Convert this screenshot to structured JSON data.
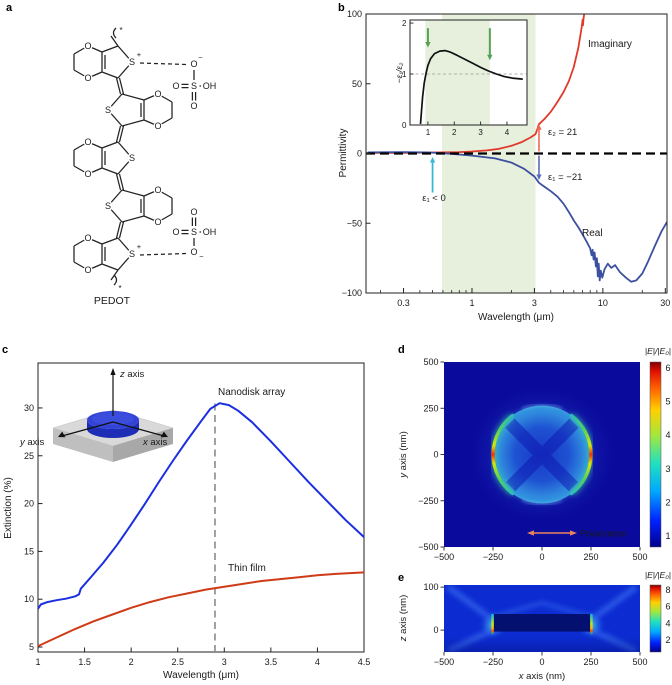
{
  "figure": {
    "background": "#ffffff"
  },
  "panels": {
    "a": {
      "label": "a",
      "molecule_name": "PEDOT",
      "atom_o": "O",
      "atom_s": "S",
      "atom_oh": "OH",
      "charge_plus": "+",
      "charge_minus": "−",
      "asterisk": "*"
    },
    "b": {
      "label": "b",
      "imaginary_label": "Imaginary",
      "real_label": "Real",
      "ann_eps2": "ε₂ = 21",
      "ann_eps1": "ε₁ = −21",
      "ann_eps1_lt0": "ε₁ < 0"
    },
    "c": {
      "label": "c",
      "series_nanodisk": "Nanodisk array",
      "series_thinfilm": "Thin film",
      "axis_z_letter": "z",
      "axis_x_letter": "x",
      "axis_y_letter": "y",
      "axis_word": " axis"
    },
    "d": {
      "label": "d",
      "colorbar_label": "|E|/|E₀|",
      "polarization_label": "Polarization",
      "ylabel_letter": "y",
      "ylabel_rest": " axis (nm)"
    },
    "e": {
      "label": "e",
      "colorbar_label": "|E|/|E₀|",
      "ylabel_letter": "z",
      "ylabel_rest": " axis (nm)",
      "xlabel_letter": "x",
      "xlabel_rest": " axis (nm)"
    }
  },
  "chart_data": [
    {
      "id": "permittivity_spectrum",
      "panel": "b",
      "type": "line",
      "xlabel": "Wavelength (μm)",
      "ylabel": "Permittivity",
      "xscale": "log",
      "xlim": [
        0.155,
        30.9
      ],
      "ylim": [
        -100,
        100
      ],
      "xticks": [
        0.3,
        1,
        3,
        10,
        30
      ],
      "xticks_minor": [
        0.2,
        0.4,
        0.5,
        0.6,
        0.7,
        0.8,
        0.9,
        2,
        4,
        5,
        6,
        7,
        8,
        9,
        20
      ],
      "yticks": [
        -100,
        -50,
        0,
        50,
        100
      ],
      "shaded_band_x": [
        0.59,
        3.06
      ],
      "band_color": "#e6f0dd",
      "zero_line": 0,
      "grid": false,
      "legend_position": "inline-labels",
      "series": [
        {
          "name": "Imaginary",
          "color": "#e0392b",
          "points": [
            [
              0.16,
              0.4
            ],
            [
              0.3,
              0.5
            ],
            [
              0.5,
              0.7
            ],
            [
              0.8,
              1.0
            ],
            [
              1,
              1.4
            ],
            [
              1.3,
              2.2
            ],
            [
              1.6,
              3.3
            ],
            [
              2,
              5.5
            ],
            [
              2.4,
              8.2
            ],
            [
              2.8,
              11.5
            ],
            [
              3.06,
              14
            ],
            [
              3.25,
              21
            ],
            [
              3.6,
              25
            ],
            [
              4,
              30
            ],
            [
              4.5,
              37
            ],
            [
              5,
              44
            ],
            [
              5.5,
              52
            ],
            [
              6,
              62
            ],
            [
              6.5,
              76
            ],
            [
              6.9,
              91
            ],
            [
              7.0,
              96
            ],
            [
              7.05,
              92
            ],
            [
              7.1,
              96
            ],
            [
              7.2,
              100
            ]
          ]
        },
        {
          "name": "Real",
          "color": "#3c50a0",
          "points": [
            [
              0.16,
              0.8
            ],
            [
              0.3,
              0.9
            ],
            [
              0.45,
              0.8
            ],
            [
              0.6,
              0.2
            ],
            [
              0.7,
              -0.3
            ],
            [
              1,
              -1.5
            ],
            [
              1.5,
              -3.5
            ],
            [
              2,
              -6.5
            ],
            [
              2.5,
              -11
            ],
            [
              3,
              -16.5
            ],
            [
              3.25,
              -21
            ],
            [
              3.6,
              -24
            ],
            [
              4,
              -27
            ],
            [
              4.5,
              -31
            ],
            [
              5,
              -36
            ],
            [
              5.5,
              -42
            ],
            [
              6,
              -48
            ],
            [
              6.5,
              -53
            ],
            [
              7,
              -58
            ],
            [
              7.5,
              -63
            ],
            [
              8,
              -68
            ],
            [
              8.2,
              -73
            ],
            [
              8.35,
              -69
            ],
            [
              8.5,
              -76
            ],
            [
              8.65,
              -71
            ],
            [
              8.85,
              -81
            ],
            [
              9.0,
              -75
            ],
            [
              9.15,
              -88
            ],
            [
              9.3,
              -79
            ],
            [
              9.45,
              -91
            ],
            [
              9.65,
              -84
            ],
            [
              9.9,
              -89
            ],
            [
              10.3,
              -83
            ],
            [
              10.9,
              -79
            ],
            [
              11.6,
              -82
            ],
            [
              12.4,
              -80
            ],
            [
              13.5,
              -85
            ],
            [
              15,
              -89
            ],
            [
              16.5,
              -92
            ],
            [
              18,
              -91
            ],
            [
              20,
              -86
            ],
            [
              22,
              -78
            ],
            [
              25,
              -66
            ],
            [
              28,
              -56
            ],
            [
              30.9,
              -49
            ]
          ]
        }
      ],
      "annotations": {
        "eps2_value": 21,
        "eps1_value": -21,
        "eps_arrow_x": 3.25,
        "eps1_lt0_arrow_x": 0.5
      }
    },
    {
      "id": "ratio_inset",
      "panel": "b",
      "type": "line",
      "ylabel": "−ε₁/ε₂",
      "xlim": [
        0.32,
        4.76
      ],
      "ylim": [
        0,
        2.06
      ],
      "xticks": [
        1,
        2,
        3,
        4
      ],
      "yticks": [
        0,
        1,
        2
      ],
      "dashed_hline": 1,
      "shaded_band_x": [
        0.9,
        3.35
      ],
      "band_color": "#e6f0dd",
      "arrows_down_x": [
        1.0,
        3.35
      ],
      "arrow_color": "#55a257",
      "series": [
        {
          "name": "−ε₁/ε₂",
          "color": "#111111",
          "points": [
            [
              0.72,
              0.02
            ],
            [
              0.76,
              0.3
            ],
            [
              0.8,
              0.55
            ],
            [
              0.86,
              0.82
            ],
            [
              0.93,
              1.02
            ],
            [
              1.0,
              1.17
            ],
            [
              1.1,
              1.3
            ],
            [
              1.25,
              1.4
            ],
            [
              1.45,
              1.45
            ],
            [
              1.65,
              1.46
            ],
            [
              1.85,
              1.43
            ],
            [
              2.1,
              1.37
            ],
            [
              2.4,
              1.29
            ],
            [
              2.7,
              1.21
            ],
            [
              3.0,
              1.13
            ],
            [
              3.3,
              1.06
            ],
            [
              3.6,
              1.0
            ],
            [
              3.9,
              0.95
            ],
            [
              4.2,
              0.92
            ],
            [
              4.6,
              0.9
            ]
          ]
        }
      ]
    },
    {
      "id": "extinction_spectrum",
      "panel": "c",
      "type": "line",
      "xlabel": "Wavelength (μm)",
      "ylabel": "Extinction (%)",
      "xlim": [
        1,
        4.5
      ],
      "ylim": [
        4.48,
        34.7
      ],
      "xticks": [
        1,
        1.5,
        2,
        2.5,
        3,
        3.5,
        4,
        4.5
      ],
      "yticks": [
        5,
        10,
        15,
        20,
        25,
        30
      ],
      "dashed_vline_x": 2.9,
      "dashed_vline_top_value": 30.5,
      "grid": false,
      "legend_position": "inline-labels",
      "series": [
        {
          "name": "Nanodisk array",
          "color": "#1b2ee0",
          "points": [
            [
              1,
              9.0
            ],
            [
              1.03,
              9.45
            ],
            [
              1.1,
              9.7
            ],
            [
              1.2,
              9.9
            ],
            [
              1.3,
              10.05
            ],
            [
              1.4,
              10.3
            ],
            [
              1.44,
              10.5
            ],
            [
              1.46,
              11.1
            ],
            [
              1.55,
              12.1
            ],
            [
              1.7,
              13.8
            ],
            [
              1.85,
              15.7
            ],
            [
              2.0,
              17.8
            ],
            [
              2.15,
              20.0
            ],
            [
              2.3,
              22.3
            ],
            [
              2.45,
              24.5
            ],
            [
              2.6,
              26.6
            ],
            [
              2.75,
              28.6
            ],
            [
              2.85,
              29.9
            ],
            [
              2.95,
              30.5
            ],
            [
              3.05,
              30.3
            ],
            [
              3.15,
              29.7
            ],
            [
              3.3,
              28.5
            ],
            [
              3.5,
              26.5
            ],
            [
              3.7,
              24.4
            ],
            [
              3.9,
              22.3
            ],
            [
              4.1,
              20.3
            ],
            [
              4.3,
              18.3
            ],
            [
              4.5,
              16.5
            ]
          ]
        },
        {
          "name": "Thin film",
          "color": "#cf3b16",
          "points": [
            [
              1,
              5.1
            ],
            [
              1.2,
              6.0
            ],
            [
              1.4,
              6.9
            ],
            [
              1.6,
              7.7
            ],
            [
              1.8,
              8.4
            ],
            [
              2.0,
              9.1
            ],
            [
              2.2,
              9.7
            ],
            [
              2.4,
              10.2
            ],
            [
              2.6,
              10.6
            ],
            [
              2.8,
              11.0
            ],
            [
              3.0,
              11.3
            ],
            [
              3.2,
              11.6
            ],
            [
              3.4,
              11.9
            ],
            [
              3.6,
              12.1
            ],
            [
              3.8,
              12.3
            ],
            [
              4.0,
              12.5
            ],
            [
              4.2,
              12.65
            ],
            [
              4.5,
              12.8
            ]
          ]
        }
      ]
    },
    {
      "id": "field_map_xy",
      "panel": "d",
      "type": "heatmap",
      "ylabel": "y axis (nm)",
      "xlim": [
        -500,
        500
      ],
      "ylim": [
        -500,
        500
      ],
      "xticks": [
        -500,
        -250,
        0,
        250,
        500
      ],
      "yticks": [
        500,
        250,
        0,
        -250,
        -500
      ],
      "colorbar": {
        "label": "|E|/|E₀|",
        "ticks": [
          1,
          2,
          3,
          4,
          5,
          6
        ],
        "range": [
          0.67,
          6.18
        ],
        "colormap": "jet"
      },
      "disk_radius_nm": 250,
      "hotspot_positions_nm": [
        [
          -250,
          0
        ],
        [
          250,
          0
        ]
      ],
      "annotation": "Polarization"
    },
    {
      "id": "field_map_xz",
      "panel": "e",
      "type": "heatmap",
      "xlabel": "x axis (nm)",
      "ylabel": "z axis (nm)",
      "xlim": [
        -500,
        500
      ],
      "ylim": [
        -51,
        105
      ],
      "xticks": [
        -500,
        -250,
        0,
        250,
        500
      ],
      "yticks": [
        100,
        0
      ],
      "colorbar": {
        "label": "|E|/|E₀|",
        "ticks": [
          2,
          4,
          6,
          8
        ],
        "range": [
          0.56,
          8.6
        ],
        "colormap": "jet"
      },
      "disk_span_nm": [
        -250,
        250
      ],
      "disk_thickness_nm": 40,
      "hotspot_positions_nm": [
        [
          -250,
          0
        ],
        [
          250,
          0
        ]
      ]
    }
  ]
}
